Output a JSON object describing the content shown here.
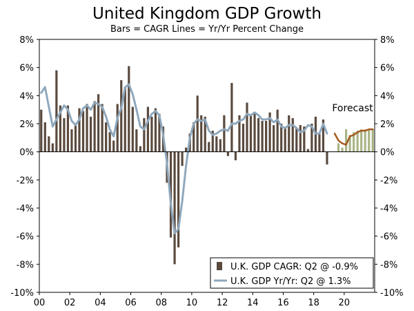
{
  "chart_data": {
    "type": "bar",
    "title": "United Kingdom GDP Growth",
    "subtitle": "Bars = CAGR    Lines = Yr/Yr Percent Change",
    "ylim": [
      -10,
      8
    ],
    "yticks": [
      8,
      6,
      4,
      2,
      0,
      -2,
      -4,
      -6,
      -8,
      -10
    ],
    "ytick_labels": [
      "8%",
      "6%",
      "4%",
      "2%",
      "0%",
      "-2%",
      "-4%",
      "-6%",
      "-8%",
      "-10%"
    ],
    "xlim": [
      2000.0,
      2022.0
    ],
    "xtick_labels": [
      {
        "x": 2000,
        "label": "00"
      },
      {
        "x": 2002,
        "label": "02"
      },
      {
        "x": 2004,
        "label": "04"
      },
      {
        "x": 2006,
        "label": "06"
      },
      {
        "x": 2008,
        "label": "08"
      },
      {
        "x": 2010,
        "label": "10"
      },
      {
        "x": 2012,
        "label": "12"
      },
      {
        "x": 2014,
        "label": "14"
      },
      {
        "x": 2016,
        "label": "16"
      },
      {
        "x": 2018,
        "label": "18"
      },
      {
        "x": 2020,
        "label": "20"
      }
    ],
    "annotation": "Forecast",
    "colors": {
      "bar": "#5a4a3e",
      "forecast_bar": "#a9b485",
      "line": "#8fa8bd",
      "forecast_line": "#a65a1e"
    },
    "series": [
      {
        "name": "U.K. GDP CAGR: Q2 @ -0.9%",
        "kind": "bar",
        "start": 2000.0,
        "step": 0.25,
        "values": [
          3.0,
          2.1,
          1.1,
          0.6,
          5.8,
          3.3,
          2.4,
          3.3,
          1.6,
          2.0,
          3.1,
          2.9,
          3.4,
          2.5,
          3.6,
          4.1,
          3.4,
          2.1,
          1.4,
          0.8,
          3.4,
          5.1,
          4.6,
          6.1,
          3.2,
          1.6,
          0.4,
          2.4,
          3.2,
          2.5,
          3.1,
          2.7,
          1.8,
          -2.2,
          -6.1,
          -8.0,
          -6.8,
          -1.0,
          0.3,
          1.3,
          2.1,
          4.0,
          2.6,
          2.5,
          0.7,
          1.5,
          1.1,
          0.9,
          2.6,
          -0.3,
          4.9,
          -0.6,
          2.6,
          2.0,
          3.5,
          2.6,
          2.8,
          2.4,
          2.2,
          2.2,
          2.8,
          1.9,
          3.0,
          2.0,
          1.7,
          2.6,
          2.4,
          1.7,
          1.9,
          1.8,
          0.2,
          2.0,
          2.5,
          1.3,
          2.3,
          -0.9
        ]
      },
      {
        "name": "Forecast CAGR",
        "kind": "bar_forecast",
        "start": 2019.5,
        "step": 0.25,
        "values": [
          0.6,
          0.3,
          1.6,
          1.2,
          1.4,
          1.5,
          1.6,
          1.6,
          1.6,
          1.6
        ]
      },
      {
        "name": "U.K. GDP Yr/Yr: Q2 @ 1.3%",
        "kind": "line",
        "start": 2000.0,
        "step": 0.25,
        "values": [
          4.2,
          4.6,
          3.2,
          1.8,
          2.3,
          2.8,
          3.3,
          3.0,
          2.2,
          1.9,
          2.3,
          3.1,
          3.3,
          3.0,
          3.5,
          3.4,
          3.2,
          2.5,
          1.6,
          1.1,
          2.4,
          3.1,
          4.6,
          4.8,
          4.1,
          3.0,
          1.8,
          1.6,
          2.2,
          2.7,
          2.9,
          2.6,
          1.2,
          -0.8,
          -3.7,
          -5.8,
          -5.5,
          -3.5,
          -1.0,
          1.0,
          2.0,
          2.3,
          2.2,
          2.3,
          1.5,
          1.2,
          1.3,
          1.5,
          1.6,
          1.5,
          2.0,
          2.0,
          2.2,
          2.3,
          2.7,
          2.6,
          2.8,
          2.6,
          2.3,
          2.3,
          2.4,
          2.1,
          2.3,
          1.8,
          1.7,
          1.9,
          1.9,
          1.7,
          1.4,
          1.5,
          1.9,
          1.8,
          1.3,
          1.3,
          2.0,
          1.3
        ]
      },
      {
        "name": "Forecast Yr/Yr",
        "kind": "line_forecast",
        "start": 2019.25,
        "step": 0.25,
        "values": [
          1.3,
          0.8,
          0.6,
          0.5,
          1.1,
          1.2,
          1.4,
          1.5,
          1.5,
          1.6,
          1.6
        ]
      }
    ],
    "legend": {
      "position": "bottom-right",
      "items": [
        {
          "label": "U.K. GDP CAGR: Q2 @ -0.9%",
          "swatch": "bar"
        },
        {
          "label": "U.K. GDP Yr/Yr: Q2 @ 1.3%",
          "swatch": "line"
        }
      ]
    }
  }
}
